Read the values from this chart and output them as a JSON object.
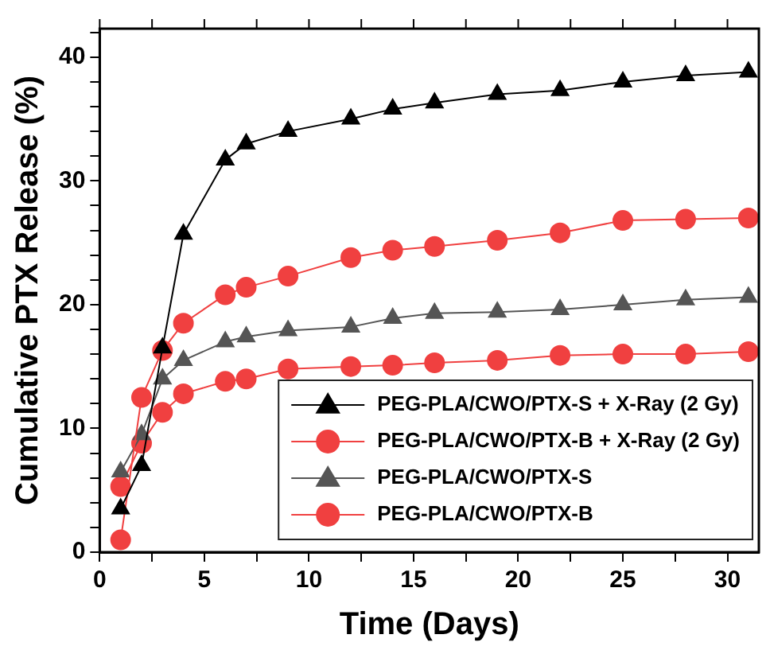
{
  "chart_data": {
    "type": "line",
    "xlabel": "Time (Days)",
    "ylabel": "Cumulative PTX Release (%)",
    "x": [
      1,
      2,
      3,
      4,
      6,
      7,
      9,
      12,
      14,
      16,
      19,
      22,
      25,
      28,
      31
    ],
    "series": [
      {
        "name": "PEG-PLA/CWO/PTX-S + X-Ray (2 Gy)",
        "color": "#000000",
        "marker": "triangle",
        "values": [
          3.5,
          7,
          16.5,
          25.7,
          31.7,
          33,
          34,
          35,
          35.8,
          36.3,
          37,
          37.3,
          38,
          38.5,
          38.8
        ]
      },
      {
        "name": "PEG-PLA/CWO/PTX-B + X-Ray (2 Gy)",
        "color": "#f04040",
        "marker": "circle",
        "values": [
          1,
          12.5,
          16.3,
          18.5,
          20.8,
          21.4,
          22.3,
          23.8,
          24.4,
          24.7,
          25.2,
          25.8,
          26.8,
          26.9,
          27
        ]
      },
      {
        "name": "PEG-PLA/CWO/PTX-S",
        "color": "#555555",
        "marker": "triangle",
        "values": [
          6.5,
          9.5,
          14,
          15.5,
          17,
          17.4,
          17.9,
          18.2,
          18.9,
          19.3,
          19.4,
          19.6,
          20,
          20.4,
          20.6
        ]
      },
      {
        "name": "PEG-PLA/CWO/PTX-B",
        "color": "#f04040",
        "marker": "circle",
        "values": [
          5.3,
          8.8,
          11.3,
          12.8,
          13.8,
          14,
          14.8,
          15,
          15.1,
          15.3,
          15.5,
          15.9,
          16,
          16,
          16.2
        ]
      }
    ],
    "xlim": [
      0,
      31.5
    ],
    "xticks": [
      0,
      {
        "value": 2.5,
        "label": null
      },
      5,
      {
        "value": 7.5,
        "label": null
      },
      10,
      {
        "value": 12.5,
        "label": null
      },
      15,
      {
        "value": 17.5,
        "label": null
      },
      20,
      {
        "value": 22.5,
        "label": null
      },
      25,
      {
        "value": 27.5,
        "label": null
      },
      30
    ],
    "ylim": [
      0,
      42.3
    ],
    "yticks": [
      0,
      {
        "value": 2,
        "label": null
      },
      {
        "value": 4,
        "label": null
      },
      {
        "value": 6,
        "label": null
      },
      {
        "value": 8,
        "label": null
      },
      10,
      {
        "value": 12,
        "label": null
      },
      {
        "value": 14,
        "label": null
      },
      {
        "value": 16,
        "label": null
      },
      {
        "value": 18,
        "label": null
      },
      20,
      {
        "value": 22,
        "label": null
      },
      {
        "value": 24,
        "label": null
      },
      {
        "value": 26,
        "label": null
      },
      {
        "value": 28,
        "label": null
      },
      30,
      {
        "value": 32,
        "label": null
      },
      {
        "value": 34,
        "label": null
      },
      {
        "value": 36,
        "label": null
      },
      {
        "value": 38,
        "label": null
      },
      40,
      {
        "value": 42,
        "label": null
      }
    ],
    "grid": false,
    "legend": "bottom right",
    "line_style": "solid"
  }
}
